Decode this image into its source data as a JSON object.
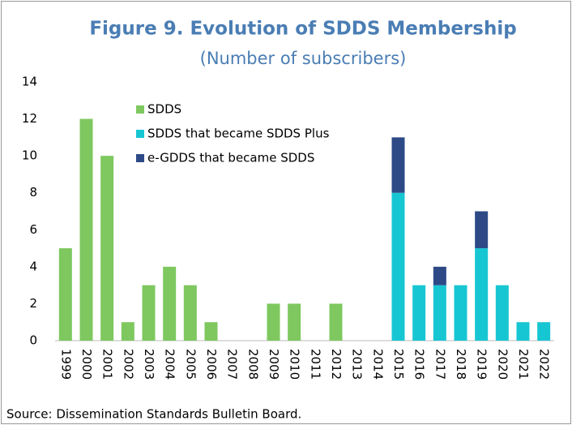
{
  "chart_data": {
    "type": "stacked_bar",
    "title": "Figure 9. Evolution of SDDS Membership",
    "subtitle": "(Number of subscribers)",
    "source": "Source: Dissemination Standards Bulletin Board.",
    "categories": [
      "1999",
      "2000",
      "2001",
      "2002",
      "2003",
      "2004",
      "2005",
      "2006",
      "2007",
      "2008",
      "2009",
      "2010",
      "2011",
      "2012",
      "2013",
      "2014",
      "2015",
      "2016",
      "2017",
      "2018",
      "2019",
      "2020",
      "2021",
      "2022"
    ],
    "series": [
      {
        "name": "SDDS",
        "color": "#7ec85f",
        "values": [
          5,
          12,
          10,
          1,
          3,
          4,
          3,
          1,
          0,
          0,
          2,
          2,
          0,
          2,
          0,
          0,
          0,
          0,
          0,
          0,
          0,
          0,
          0,
          0
        ]
      },
      {
        "name": "SDDS that became SDDS Plus",
        "color": "#17c6d3",
        "values": [
          0,
          0,
          0,
          0,
          0,
          0,
          0,
          0,
          0,
          0,
          0,
          0,
          0,
          0,
          0,
          0,
          8,
          3,
          3,
          3,
          5,
          3,
          1,
          1
        ]
      },
      {
        "name": "e-GDDS that became SDDS",
        "color": "#2d4a87",
        "values": [
          0,
          0,
          0,
          0,
          0,
          0,
          0,
          0,
          0,
          0,
          0,
          0,
          0,
          0,
          0,
          0,
          3,
          0,
          1,
          0,
          2,
          0,
          0,
          0
        ]
      }
    ],
    "ylim": [
      0,
      14
    ],
    "yticks": [
      0,
      2,
      4,
      6,
      8,
      10,
      12,
      14
    ],
    "grid": false,
    "legend": "top-left"
  }
}
